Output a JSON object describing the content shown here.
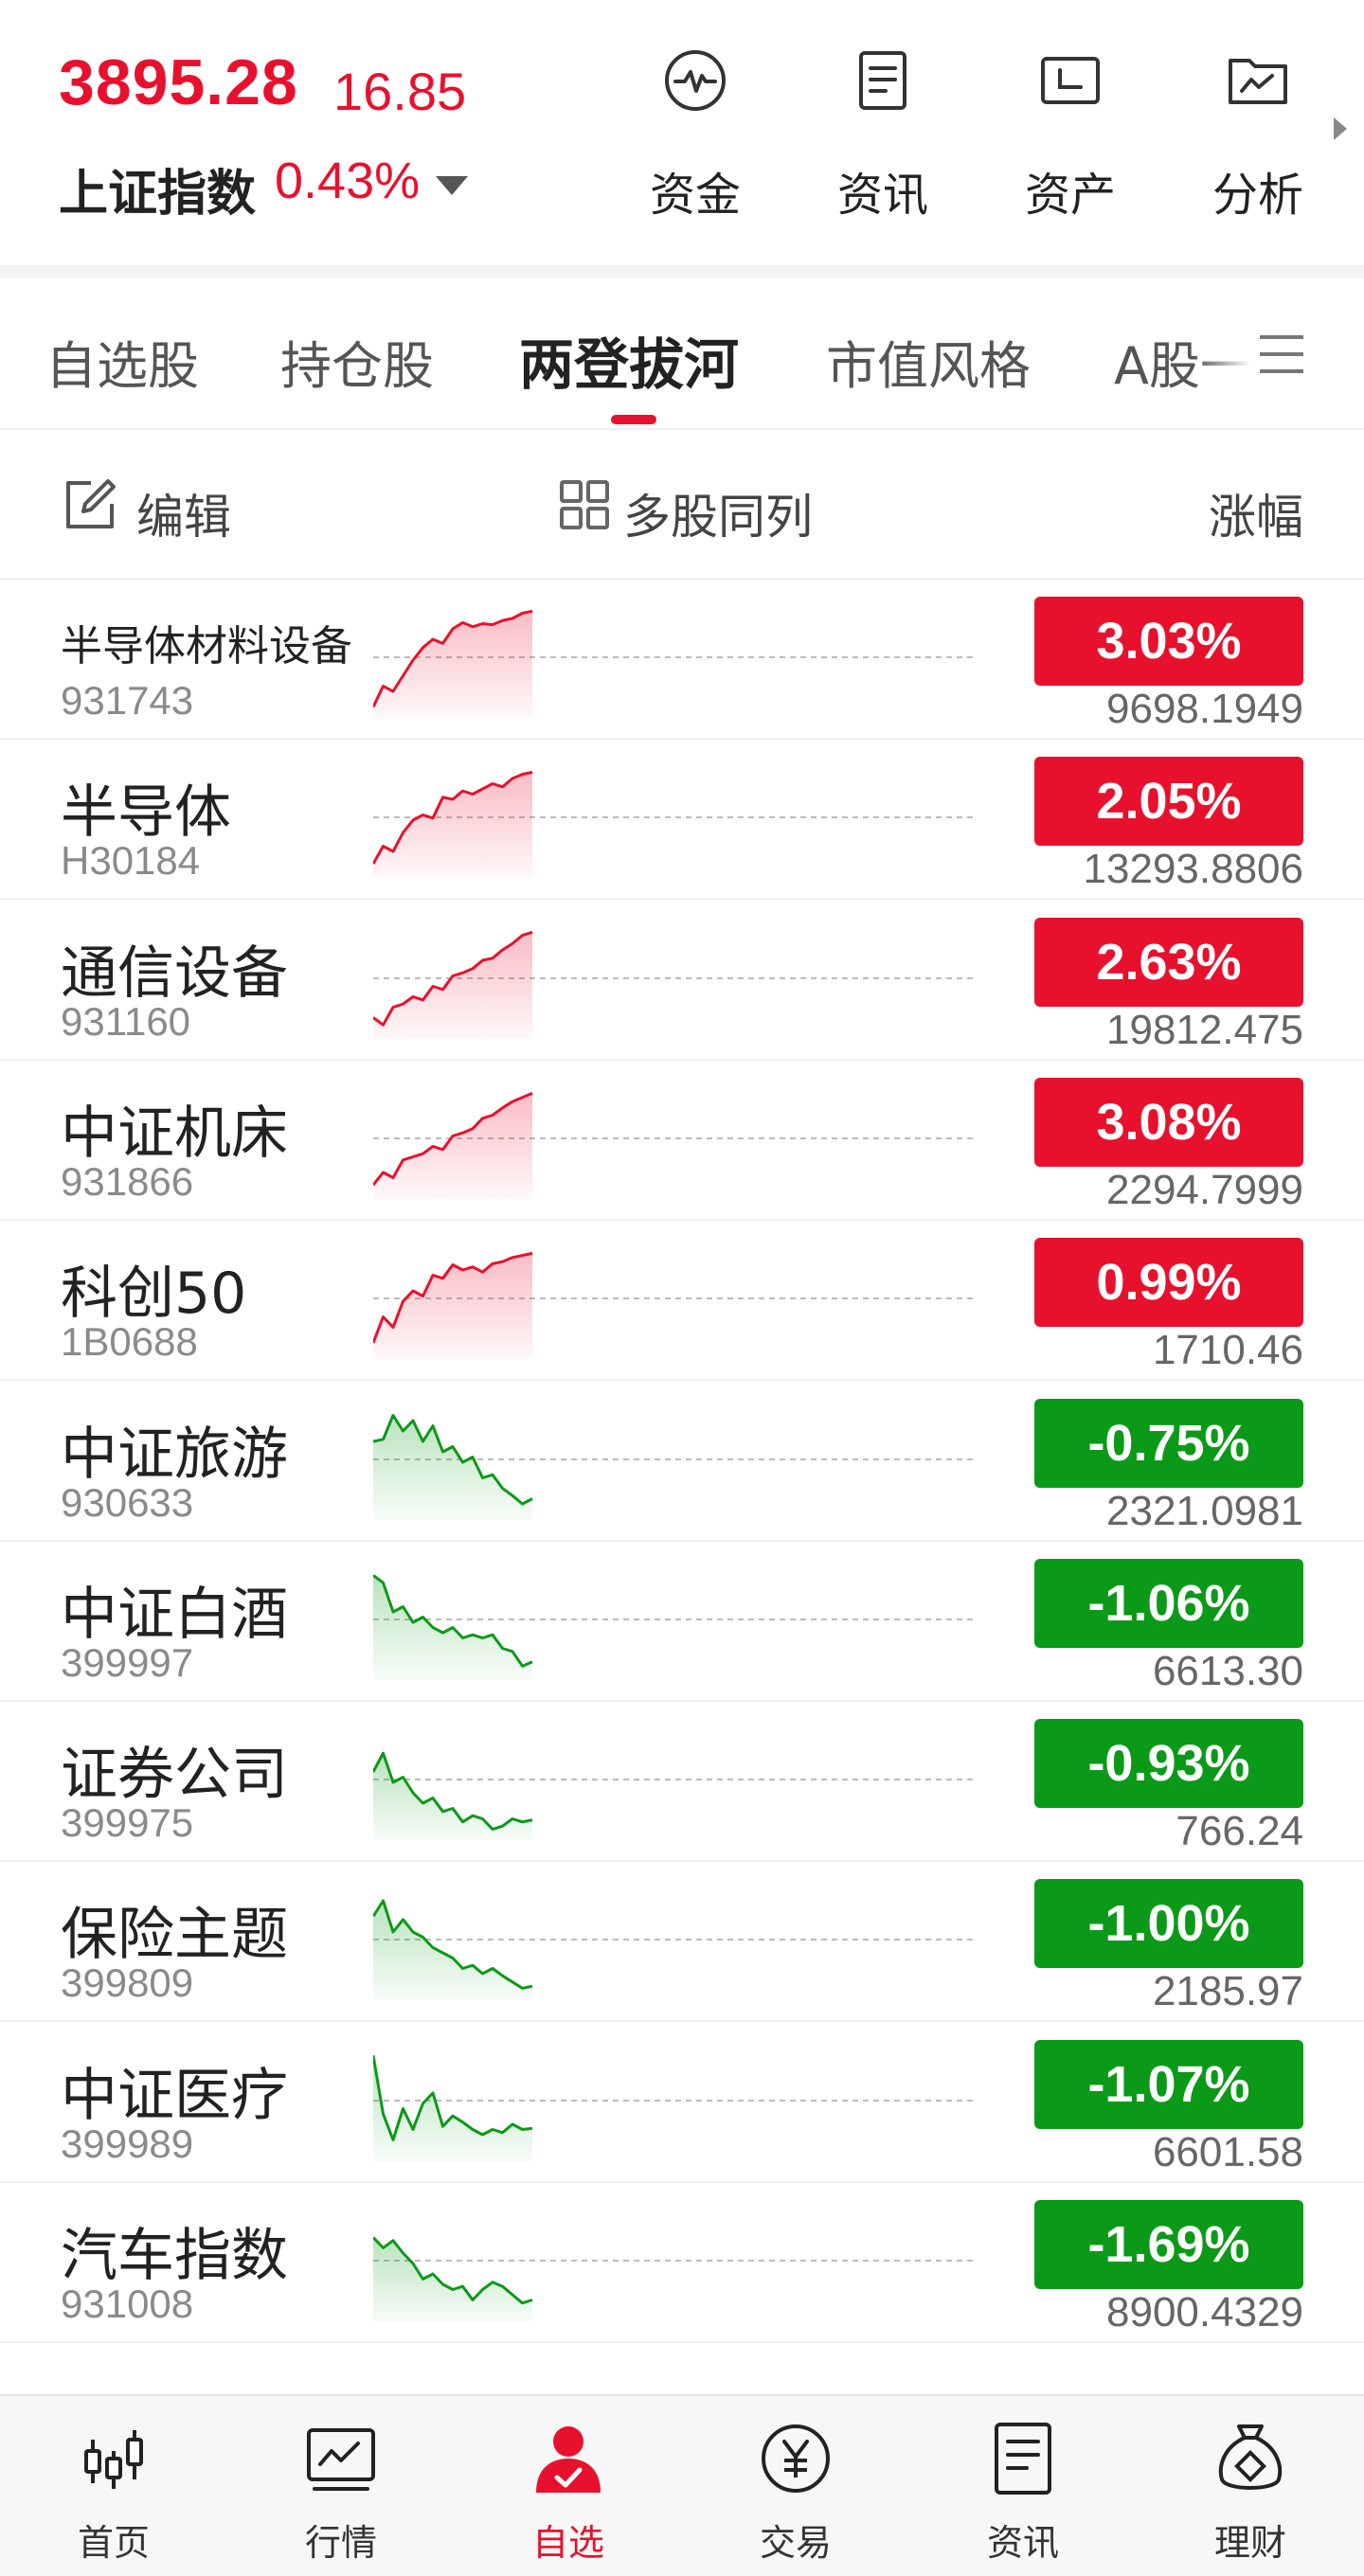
{
  "index": {
    "price": "3895.28",
    "change": "16.85",
    "name": "上证指数",
    "pct": "0.43%"
  },
  "quick_actions": [
    {
      "label": "资金",
      "icon": "pulse-icon"
    },
    {
      "label": "资讯",
      "icon": "document-icon"
    },
    {
      "label": "资产",
      "icon": "wallet-icon"
    },
    {
      "label": "分析",
      "icon": "chart-folder-icon"
    }
  ],
  "tabs": [
    "自选股",
    "持仓股",
    "两登拔河",
    "市值风格",
    "A股一"
  ],
  "active_tab": 2,
  "toolbar": {
    "edit": "编辑",
    "multi": "多股同列",
    "sort": "涨幅"
  },
  "colors": {
    "up": "#e8112d",
    "down": "#0a9a17"
  },
  "rows": [
    {
      "name": "半导体材料设备",
      "code": "931743",
      "pct": "3.03%",
      "price": "9698.1949",
      "dir": "up",
      "small": true,
      "spark": [
        0.05,
        0.25,
        0.2,
        0.35,
        0.5,
        0.62,
        0.7,
        0.66,
        0.8,
        0.86,
        0.82,
        0.85,
        0.84,
        0.88,
        0.9,
        0.95,
        0.97
      ]
    },
    {
      "name": "半导体",
      "code": "H30184",
      "pct": "2.05%",
      "price": "13293.8806",
      "dir": "up",
      "spark": [
        0.08,
        0.25,
        0.2,
        0.38,
        0.5,
        0.55,
        0.52,
        0.72,
        0.7,
        0.78,
        0.75,
        0.8,
        0.85,
        0.82,
        0.9,
        0.94,
        0.96
      ]
    },
    {
      "name": "通信设备",
      "code": "931160",
      "pct": "2.63%",
      "price": "19812.475",
      "dir": "up",
      "spark": [
        0.15,
        0.08,
        0.25,
        0.28,
        0.35,
        0.32,
        0.45,
        0.42,
        0.55,
        0.58,
        0.62,
        0.7,
        0.72,
        0.8,
        0.86,
        0.94,
        0.97
      ]
    },
    {
      "name": "中证机床",
      "code": "931866",
      "pct": "3.08%",
      "price": "2294.7999",
      "dir": "up",
      "spark": [
        0.08,
        0.2,
        0.15,
        0.32,
        0.35,
        0.38,
        0.45,
        0.42,
        0.55,
        0.58,
        0.62,
        0.72,
        0.75,
        0.82,
        0.88,
        0.92,
        0.96
      ]
    },
    {
      "name": "科创50",
      "code": "1B0688",
      "pct": "0.99%",
      "price": "1710.46",
      "dir": "up",
      "spark": [
        0.1,
        0.35,
        0.25,
        0.5,
        0.6,
        0.55,
        0.75,
        0.72,
        0.85,
        0.8,
        0.83,
        0.78,
        0.86,
        0.88,
        0.92,
        0.94,
        0.96
      ]
    },
    {
      "name": "中证旅游",
      "code": "930633",
      "pct": "-0.75%",
      "price": "2321.0981",
      "dir": "down",
      "spark": [
        0.7,
        0.72,
        0.95,
        0.8,
        0.9,
        0.7,
        0.85,
        0.6,
        0.65,
        0.5,
        0.55,
        0.35,
        0.38,
        0.25,
        0.18,
        0.1,
        0.15
      ]
    },
    {
      "name": "中证白酒",
      "code": "399997",
      "pct": "-1.06%",
      "price": "6613.30",
      "dir": "down",
      "spark": [
        0.95,
        0.88,
        0.6,
        0.65,
        0.5,
        0.55,
        0.45,
        0.4,
        0.45,
        0.35,
        0.38,
        0.35,
        0.38,
        0.25,
        0.22,
        0.08,
        0.12
      ]
    },
    {
      "name": "证券公司",
      "code": "399975",
      "pct": "-0.93%",
      "price": "766.24",
      "dir": "down",
      "spark": [
        0.6,
        0.78,
        0.5,
        0.55,
        0.4,
        0.3,
        0.35,
        0.22,
        0.25,
        0.12,
        0.18,
        0.15,
        0.05,
        0.08,
        0.15,
        0.12,
        0.14
      ]
    },
    {
      "name": "保险主题",
      "code": "399809",
      "pct": "-1.00%",
      "price": "2185.97",
      "dir": "down",
      "spark": [
        0.75,
        0.9,
        0.6,
        0.72,
        0.6,
        0.55,
        0.45,
        0.4,
        0.35,
        0.25,
        0.28,
        0.2,
        0.25,
        0.18,
        0.12,
        0.06,
        0.08
      ]
    },
    {
      "name": "中证医疗",
      "code": "399989",
      "pct": "-1.07%",
      "price": "6601.58",
      "dir": "down",
      "spark": [
        0.96,
        0.4,
        0.15,
        0.45,
        0.25,
        0.5,
        0.6,
        0.28,
        0.38,
        0.32,
        0.25,
        0.2,
        0.25,
        0.22,
        0.3,
        0.25,
        0.26
      ]
    },
    {
      "name": "汽车指数",
      "code": "931008",
      "pct": "-1.69%",
      "price": "8900.4329",
      "dir": "down",
      "spark": [
        0.75,
        0.65,
        0.72,
        0.6,
        0.5,
        0.35,
        0.4,
        0.3,
        0.25,
        0.28,
        0.15,
        0.25,
        0.32,
        0.28,
        0.2,
        0.12,
        0.15
      ]
    }
  ],
  "bottom_nav": [
    {
      "label": "首页",
      "icon": "candlestick-icon"
    },
    {
      "label": "行情",
      "icon": "market-chart-icon"
    },
    {
      "label": "自选",
      "icon": "user-check-icon"
    },
    {
      "label": "交易",
      "icon": "yuan-coin-icon"
    },
    {
      "label": "资讯",
      "icon": "news-icon"
    },
    {
      "label": "理财",
      "icon": "money-bag-icon"
    }
  ],
  "active_nav": 2
}
